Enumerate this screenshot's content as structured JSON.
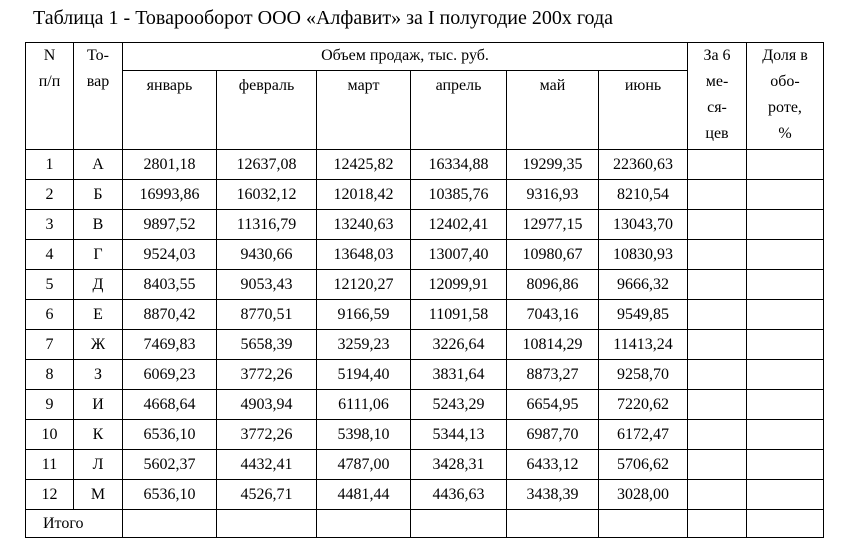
{
  "title": "Таблица 1 - Товарооборот ООО «Алфавит» за I полугодие 200х года",
  "header": {
    "num_lines": [
      "N",
      "п/п"
    ],
    "product_lines": [
      "То-",
      "вар"
    ],
    "sales": "Объем продаж, тыс. руб.",
    "months": [
      "январь",
      "февраль",
      "март",
      "апрель",
      "май",
      "июнь"
    ],
    "half_year_lines": [
      "За 6",
      "ме-",
      "ся-",
      "цев"
    ],
    "share_lines": [
      "Доля в",
      "обо-",
      "роте,",
      "%"
    ]
  },
  "rows": [
    {
      "num": "1",
      "product": "А",
      "values": [
        "2801,18",
        "12637,08",
        "12425,82",
        "16334,88",
        "19299,35",
        "22360,63"
      ]
    },
    {
      "num": "2",
      "product": "Б",
      "values": [
        "16993,86",
        "16032,12",
        "12018,42",
        "10385,76",
        "9316,93",
        "8210,54"
      ]
    },
    {
      "num": "3",
      "product": "В",
      "values": [
        "9897,52",
        "11316,79",
        "13240,63",
        "12402,41",
        "12977,15",
        "13043,70"
      ]
    },
    {
      "num": "4",
      "product": "Г",
      "values": [
        "9524,03",
        "9430,66",
        "13648,03",
        "13007,40",
        "10980,67",
        "10830,93"
      ]
    },
    {
      "num": "5",
      "product": "Д",
      "values": [
        "8403,55",
        "9053,43",
        "12120,27",
        "12099,91",
        "8096,86",
        "9666,32"
      ]
    },
    {
      "num": "6",
      "product": "Е",
      "values": [
        "8870,42",
        "8770,51",
        "9166,59",
        "11091,58",
        "7043,16",
        "9549,85"
      ]
    },
    {
      "num": "7",
      "product": "Ж",
      "values": [
        "7469,83",
        "5658,39",
        "3259,23",
        "3226,64",
        "10814,29",
        "11413,24"
      ]
    },
    {
      "num": "8",
      "product": "З",
      "values": [
        "6069,23",
        "3772,26",
        "5194,40",
        "3831,64",
        "8873,27",
        "9258,70"
      ]
    },
    {
      "num": "9",
      "product": "И",
      "values": [
        "4668,64",
        "4903,94",
        "6111,06",
        "5243,29",
        "6654,95",
        "7220,62"
      ]
    },
    {
      "num": "10",
      "product": "К",
      "values": [
        "6536,10",
        "3772,26",
        "5398,10",
        "5344,13",
        "6987,70",
        "6172,47"
      ]
    },
    {
      "num": "11",
      "product": "Л",
      "values": [
        "5602,37",
        "4432,41",
        "4787,00",
        "3428,31",
        "6433,12",
        "5706,62"
      ]
    },
    {
      "num": "12",
      "product": "М",
      "values": [
        "6536,10",
        "4526,71",
        "4481,44",
        "4436,63",
        "3438,39",
        "3028,00"
      ]
    }
  ],
  "total_label": "Итого"
}
